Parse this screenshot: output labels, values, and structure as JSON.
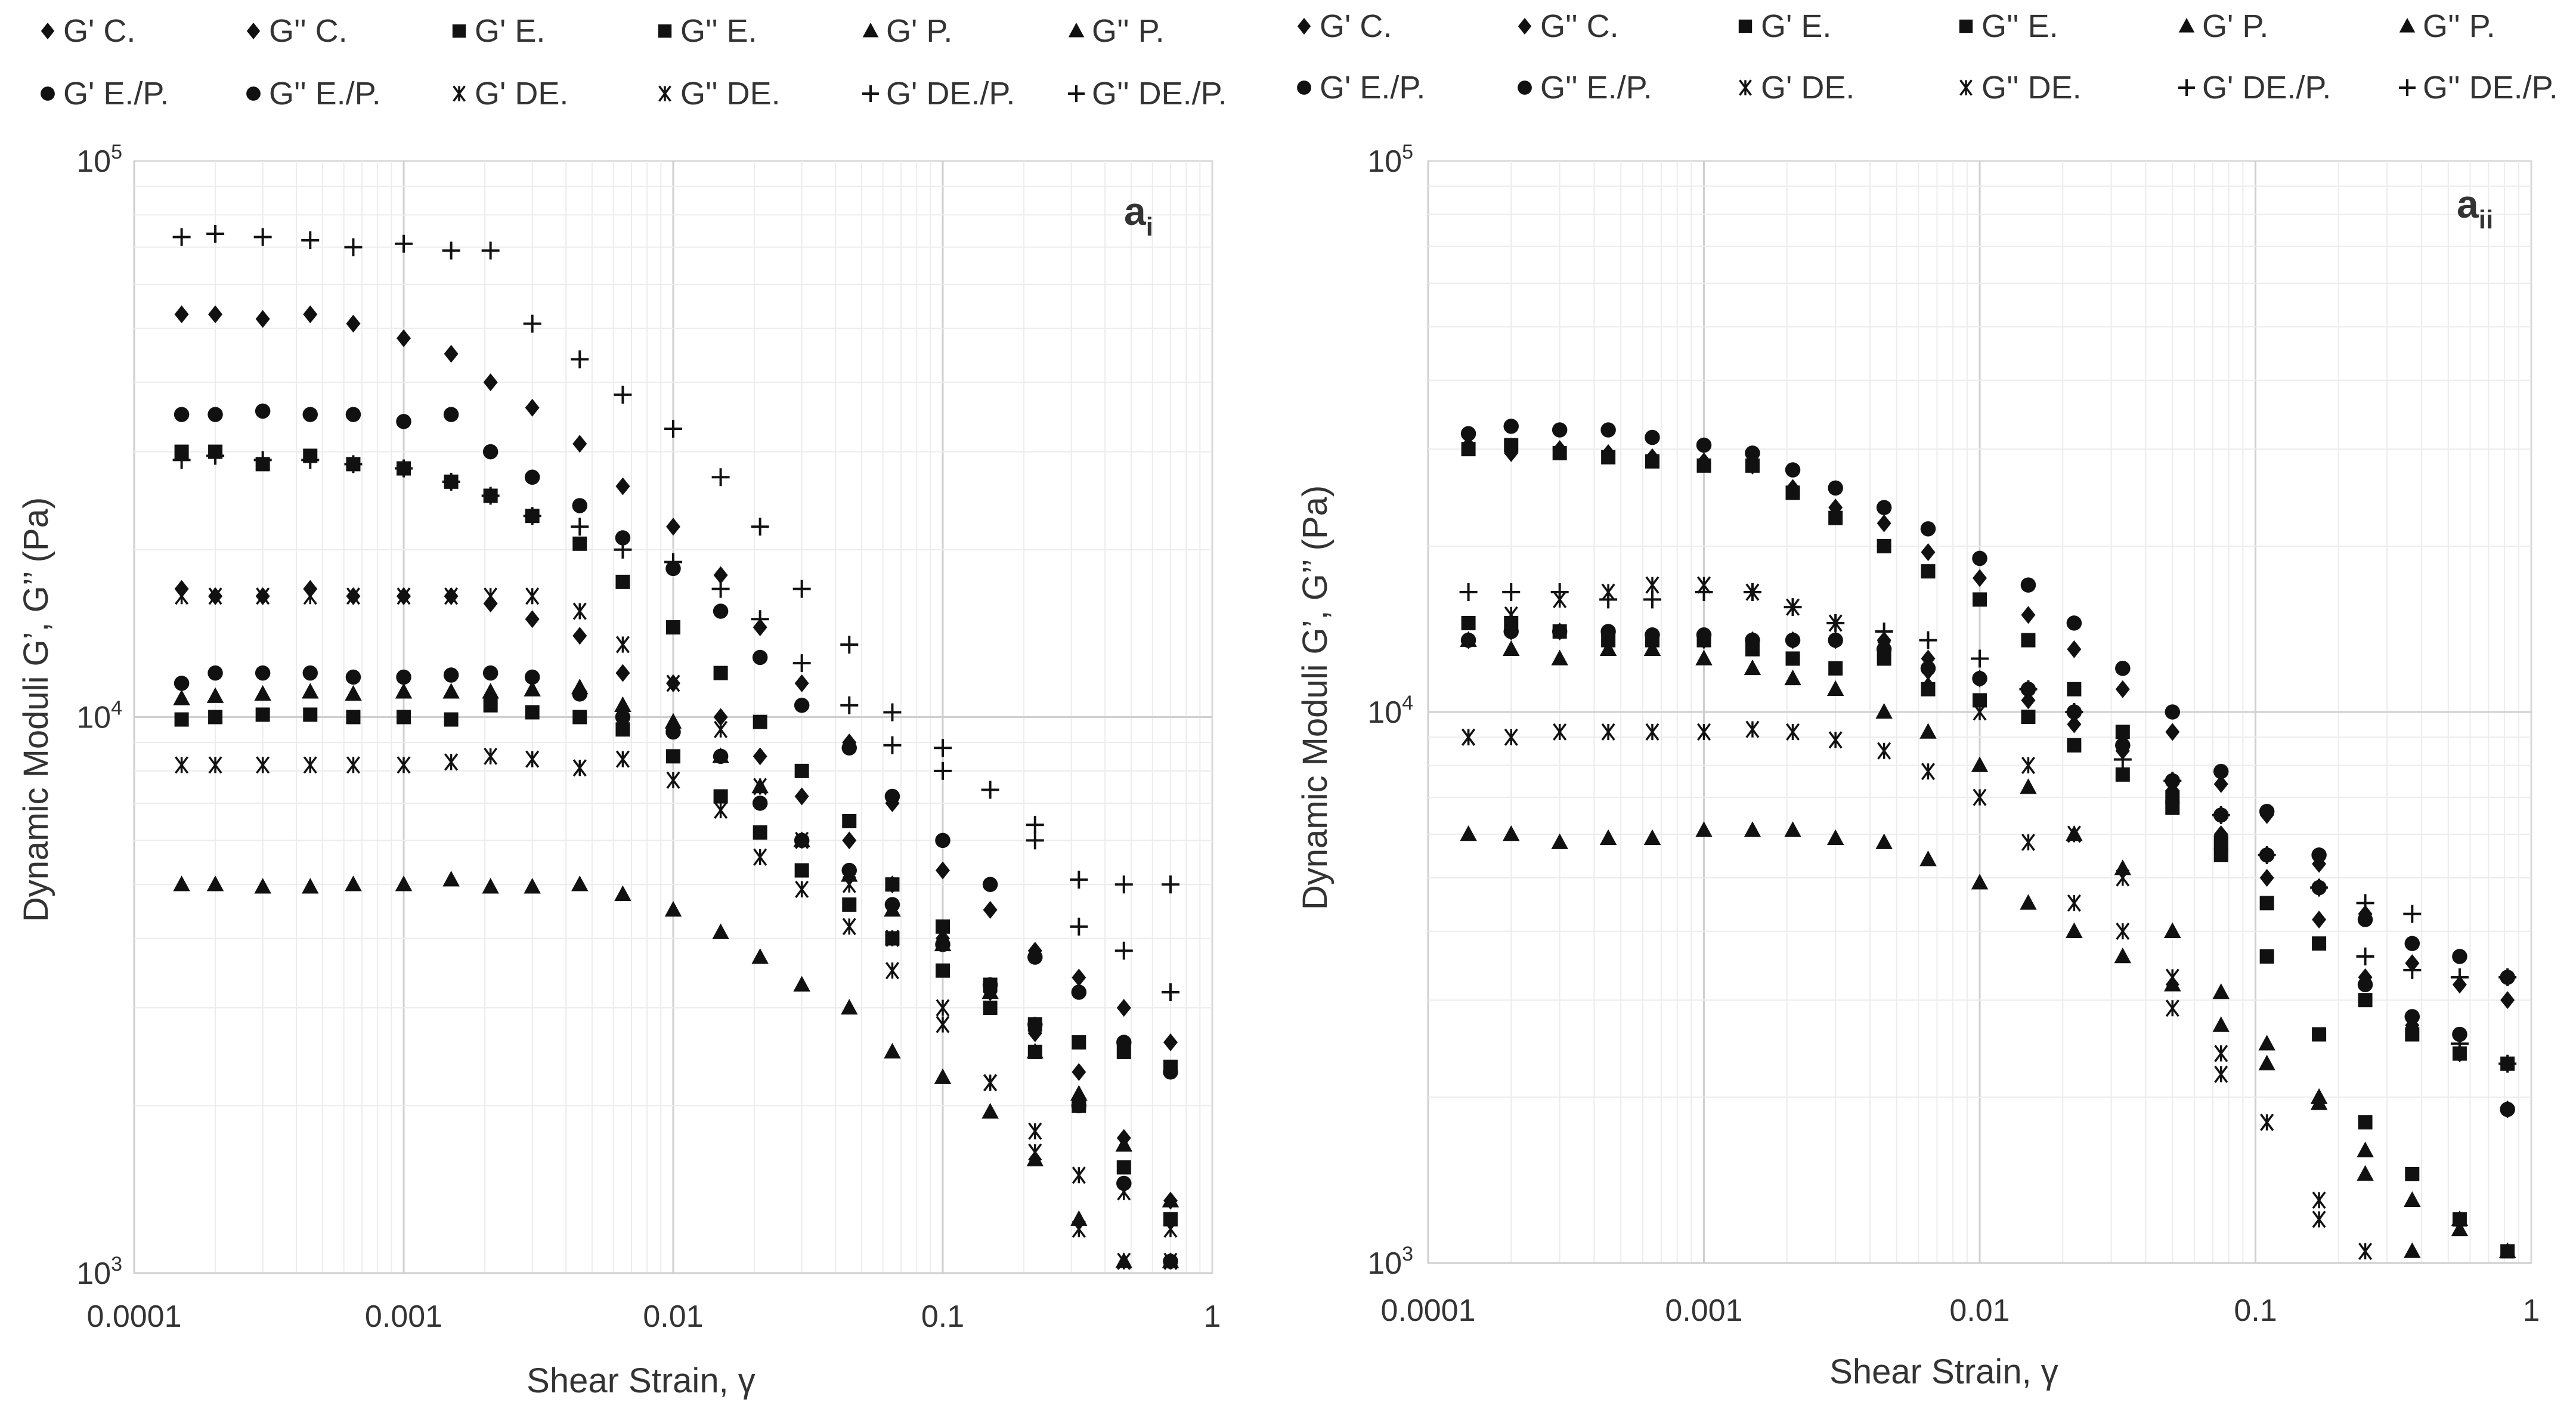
{
  "legend": [
    {
      "label": "G' C.",
      "marker": "diamond-icon"
    },
    {
      "label": "G'' C.",
      "marker": "diamond-icon"
    },
    {
      "label": "G' E.",
      "marker": "square-icon"
    },
    {
      "label": "G'' E.",
      "marker": "square-icon"
    },
    {
      "label": "G' P.",
      "marker": "triangle-icon"
    },
    {
      "label": "G'' P.",
      "marker": "triangle-icon"
    },
    {
      "label": "G' E./P.",
      "marker": "circle-icon"
    },
    {
      "label": "G'' E./P.",
      "marker": "circle-icon"
    },
    {
      "label": "G' DE.",
      "marker": "asterisk-icon"
    },
    {
      "label": "G'' DE.",
      "marker": "asterisk-icon"
    },
    {
      "label": "G' DE./P.",
      "marker": "plus-icon"
    },
    {
      "label": "G'' DE./P.",
      "marker": "plus-icon"
    }
  ],
  "chart_data": [
    {
      "type": "scatter",
      "panel_label": "a",
      "panel_sub": "i",
      "xlabel": "Shear Strain, γ",
      "ylabel": "Dynamic Moduli G’, G’’ (Pa)",
      "xscale": "log",
      "yscale": "log",
      "xlim": [
        0.0001,
        1
      ],
      "ylim": [
        1000,
        100000
      ],
      "xticks": [
        "0.0001",
        "0.001",
        "0.01",
        "0.1",
        "1"
      ],
      "yticks": [
        {
          "base": "10",
          "exp": "3"
        },
        {
          "base": "10",
          "exp": "4"
        },
        {
          "base": "10",
          "exp": "5"
        }
      ],
      "grid": true,
      "x": [
        0.00015,
        0.0002,
        0.0003,
        0.00045,
        0.00065,
        0.001,
        0.0015,
        0.0021,
        0.003,
        0.0045,
        0.0065,
        0.01,
        0.015,
        0.021,
        0.03,
        0.045,
        0.065,
        0.1,
        0.15,
        0.22,
        0.32,
        0.47,
        0.7
      ],
      "series": [
        {
          "name": "G' C.",
          "marker": "diamond",
          "values": [
            53000,
            53000,
            52000,
            53000,
            51000,
            48000,
            45000,
            40000,
            36000,
            31000,
            26000,
            22000,
            18000,
            14500,
            11500,
            9000,
            7000,
            5300,
            4500,
            3800,
            3400,
            3000,
            2600
          ]
        },
        {
          "name": "G'' C.",
          "marker": "diamond",
          "values": [
            17000,
            16500,
            16500,
            17000,
            16500,
            16500,
            16500,
            16000,
            15000,
            14000,
            12000,
            11500,
            10000,
            8500,
            7200,
            6000,
            5000,
            4000,
            3200,
            2700,
            2300,
            1750,
            1350
          ]
        },
        {
          "name": "G' E.",
          "marker": "square",
          "values": [
            30000,
            30000,
            28500,
            29500,
            28500,
            28000,
            26500,
            25000,
            23000,
            20500,
            17500,
            14500,
            12000,
            9800,
            8000,
            6500,
            5000,
            4200,
            3300,
            2800,
            2600,
            2500,
            2350
          ]
        },
        {
          "name": "G'' E.",
          "marker": "square",
          "values": [
            9900,
            10000,
            10100,
            10100,
            10000,
            10000,
            9900,
            10500,
            10200,
            10000,
            9500,
            8500,
            7200,
            6200,
            5300,
            4600,
            4000,
            3500,
            3000,
            2500,
            2000,
            1550,
            1250
          ]
        },
        {
          "name": "G' P.",
          "marker": "triangle",
          "values": [
            10800,
            10900,
            11000,
            11100,
            11000,
            11100,
            11100,
            11100,
            11200,
            11300,
            10500,
            9800,
            8500,
            7500,
            6000,
            5200,
            4500,
            3900,
            3200,
            2500,
            2100,
            1700,
            1350
          ]
        },
        {
          "name": "G'' P.",
          "marker": "triangle",
          "values": [
            5000,
            5000,
            4950,
            4950,
            5000,
            5000,
            5100,
            4950,
            4950,
            5000,
            4800,
            4500,
            4100,
            3700,
            3300,
            3000,
            2500,
            2250,
            1950,
            1600,
            1250,
            1050,
            1050
          ]
        },
        {
          "name": "G' E./P.",
          "marker": "circle",
          "values": [
            35000,
            35000,
            35500,
            35000,
            35000,
            34000,
            35000,
            30000,
            27000,
            24000,
            21000,
            18500,
            15500,
            12800,
            10500,
            8800,
            7200,
            6000,
            5000,
            3700,
            3200,
            2600,
            2300
          ]
        },
        {
          "name": "G'' E./P.",
          "marker": "circle",
          "values": [
            11500,
            12000,
            12000,
            12000,
            11800,
            11800,
            11900,
            12000,
            11800,
            11000,
            10000,
            9400,
            8500,
            7000,
            6000,
            5300,
            4600,
            3900,
            3300,
            2800,
            2000,
            1450,
            1050
          ]
        },
        {
          "name": "G' DE.",
          "marker": "asterisk",
          "values": [
            16500,
            16500,
            16500,
            16500,
            16500,
            16500,
            16500,
            16500,
            16500,
            15500,
            13500,
            11500,
            9500,
            7500,
            6000,
            5000,
            4000,
            3000,
            2200,
            1800,
            1500,
            1400,
            1200
          ]
        },
        {
          "name": "G'' DE.",
          "marker": "asterisk",
          "values": [
            8200,
            8200,
            8200,
            8200,
            8200,
            8200,
            8300,
            8500,
            8400,
            8100,
            8400,
            7700,
            6800,
            5600,
            4900,
            4200,
            3500,
            2800,
            2200,
            1650,
            1200,
            1050,
            1050
          ]
        },
        {
          "name": "G' DE./P.",
          "marker": "plus",
          "values": [
            73000,
            74000,
            73000,
            72000,
            70000,
            71000,
            69000,
            69000,
            51000,
            44000,
            38000,
            33000,
            27000,
            22000,
            17000,
            13500,
            10200,
            8800,
            7400,
            6400,
            5100,
            5000,
            5000
          ]
        },
        {
          "name": "G'' DE./P.",
          "marker": "plus",
          "values": [
            29000,
            29500,
            29000,
            29000,
            28500,
            28000,
            26500,
            25000,
            23000,
            22000,
            20000,
            19000,
            17000,
            15000,
            12500,
            10500,
            8900,
            8000,
            null,
            6000,
            4200,
            3800,
            3200
          ]
        }
      ]
    },
    {
      "type": "scatter",
      "panel_label": "a",
      "panel_sub": "ii",
      "xlabel": "Shear Strain, γ",
      "ylabel": "Dynamic Moduli G’, G’’ (Pa)",
      "xscale": "log",
      "yscale": "log",
      "xlim": [
        0.0001,
        1
      ],
      "ylim": [
        1000,
        100000
      ],
      "xticks": [
        "0.0001",
        "0.001",
        "0.01",
        "0.1",
        "1"
      ],
      "yticks": [
        {
          "base": "10",
          "exp": "3"
        },
        {
          "base": "10",
          "exp": "4"
        },
        {
          "base": "10",
          "exp": "5"
        }
      ],
      "grid": true,
      "x": [
        0.00014,
        0.0002,
        0.0003,
        0.00045,
        0.00065,
        0.001,
        0.0015,
        0.0021,
        0.003,
        0.0045,
        0.0065,
        0.01,
        0.015,
        0.022,
        0.033,
        0.05,
        0.075,
        0.11,
        0.17,
        0.25,
        0.37,
        0.55,
        0.82
      ],
      "series": [
        {
          "name": "G' C.",
          "marker": "diamond",
          "values": [
            30500,
            29500,
            30000,
            29500,
            29000,
            28500,
            28000,
            25500,
            23500,
            22000,
            19500,
            17500,
            15000,
            13000,
            11000,
            9200,
            7400,
            6500,
            5300,
            4300,
            3500,
            3200,
            3000
          ]
        },
        {
          "name": "G'' C.",
          "marker": "diamond",
          "values": [
            13500,
            14000,
            14000,
            13500,
            13500,
            13500,
            13500,
            13500,
            13500,
            13500,
            12500,
            11500,
            10500,
            9500,
            8500,
            7200,
            6000,
            5000,
            4200,
            3300,
            2700,
            2400,
            1900
          ]
        },
        {
          "name": "G' E.",
          "marker": "square",
          "values": [
            30000,
            30500,
            29500,
            29000,
            28500,
            28000,
            28000,
            25000,
            22500,
            20000,
            18000,
            16000,
            13500,
            11000,
            9200,
            7000,
            5800,
            4500,
            3800,
            3000,
            2600,
            2400,
            2300
          ]
        },
        {
          "name": "G'' E.",
          "marker": "square",
          "values": [
            14500,
            14500,
            14000,
            13500,
            13500,
            13500,
            13000,
            12500,
            12000,
            12500,
            11000,
            10500,
            9800,
            8700,
            7700,
            6700,
            5500,
            3600,
            2600,
            1800,
            1450,
            1200,
            1050
          ]
        },
        {
          "name": "G' P.",
          "marker": "triangle",
          "values": [
            13500,
            13000,
            12500,
            13000,
            13000,
            12500,
            12000,
            11500,
            11000,
            10000,
            9200,
            8000,
            7300,
            6000,
            5200,
            4000,
            3100,
            2500,
            2000,
            1600,
            1300,
            1200,
            1050
          ]
        },
        {
          "name": "G'' P.",
          "marker": "triangle",
          "values": [
            6000,
            6000,
            5800,
            5900,
            5900,
            6100,
            6100,
            6100,
            5900,
            5800,
            5400,
            4900,
            4500,
            4000,
            3600,
            3200,
            2700,
            2300,
            1950,
            1450,
            1050,
            1150,
            1050
          ]
        },
        {
          "name": "G' E./P.",
          "marker": "circle",
          "values": [
            32000,
            33000,
            32500,
            32500,
            31500,
            30500,
            29500,
            27500,
            25500,
            23500,
            21500,
            19000,
            17000,
            14500,
            12000,
            10000,
            7800,
            6600,
            5500,
            4200,
            3800,
            3600,
            3300
          ]
        },
        {
          "name": "G'' E./P.",
          "marker": "circle",
          "values": [
            13500,
            14000,
            14000,
            14000,
            13800,
            13800,
            13500,
            13500,
            13500,
            13000,
            12000,
            11500,
            11000,
            10000,
            8700,
            7500,
            6500,
            5500,
            4800,
            3200,
            2800,
            2600,
            1900
          ]
        },
        {
          "name": "G' DE.",
          "marker": "asterisk",
          "values": [
            9000,
            15000,
            16000,
            16500,
            17000,
            17000,
            16500,
            15500,
            14500,
            13000,
            11500,
            10000,
            8000,
            6000,
            5000,
            3300,
            2400,
            1800,
            1300,
            null,
            null,
            null,
            null
          ]
        },
        {
          "name": "G'' DE.",
          "marker": "asterisk",
          "values": [
            9000,
            9000,
            9200,
            9200,
            9200,
            9200,
            9300,
            9200,
            8900,
            8500,
            7800,
            7000,
            5800,
            4500,
            4000,
            2900,
            2200,
            1800,
            1200,
            1050,
            null,
            null,
            null
          ]
        },
        {
          "name": "G' DE./P.",
          "marker": "plus",
          "values": [
            16500,
            16500,
            16500,
            16000,
            16000,
            16500,
            16500,
            15500,
            14500,
            14000,
            13500,
            12500,
            11000,
            10000,
            8200,
            7500,
            6500,
            5500,
            4800,
            4500,
            4300,
            3300,
            3300
          ]
        },
        {
          "name": "G'' DE./P.",
          "marker": "plus",
          "values": [
            null,
            null,
            null,
            null,
            null,
            null,
            null,
            null,
            null,
            null,
            null,
            null,
            null,
            null,
            null,
            null,
            null,
            null,
            null,
            3600,
            3400,
            2500,
            2300
          ]
        }
      ]
    }
  ]
}
